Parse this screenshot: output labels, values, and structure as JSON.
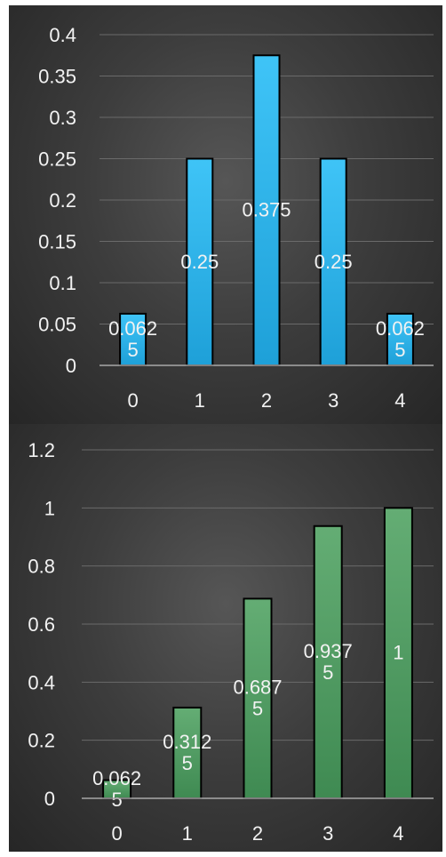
{
  "colors": {
    "pmf_bar_top": "#3fc4f7",
    "pmf_bar_bottom": "#1ea0d8",
    "cdf_bar_top": "#64ad74",
    "cdf_bar_bottom": "#3f8a52"
  },
  "chart_data": [
    {
      "type": "bar",
      "title": "",
      "xlabel": "",
      "ylabel": "",
      "categories": [
        "0",
        "1",
        "2",
        "3",
        "4"
      ],
      "values": [
        0.0625,
        0.25,
        0.375,
        0.25,
        0.0625
      ],
      "data_labels": [
        [
          "0.062",
          "5"
        ],
        [
          "0.25"
        ],
        [
          "0.375"
        ],
        [
          "0.25"
        ],
        [
          "0.062",
          "5"
        ]
      ],
      "ylim": [
        0,
        0.4
      ],
      "yticks": [
        "0",
        "0.05",
        "0.1",
        "0.15",
        "0.2",
        "0.25",
        "0.3",
        "0.35",
        "0.4"
      ],
      "grid": true,
      "legend": "none"
    },
    {
      "type": "bar",
      "title": "",
      "xlabel": "",
      "ylabel": "",
      "categories": [
        "0",
        "1",
        "2",
        "3",
        "4"
      ],
      "values": [
        0.0625,
        0.3125,
        0.6875,
        0.9375,
        1
      ],
      "data_labels": [
        [
          "0.062",
          "5"
        ],
        [
          "0.312",
          "5"
        ],
        [
          "0.687",
          "5"
        ],
        [
          "0.937",
          "5"
        ],
        [
          "1"
        ]
      ],
      "ylim": [
        0,
        1.2
      ],
      "yticks": [
        "0",
        "0.2",
        "0.4",
        "0.6",
        "0.8",
        "1",
        "1.2"
      ],
      "grid": true,
      "legend": "none"
    }
  ]
}
